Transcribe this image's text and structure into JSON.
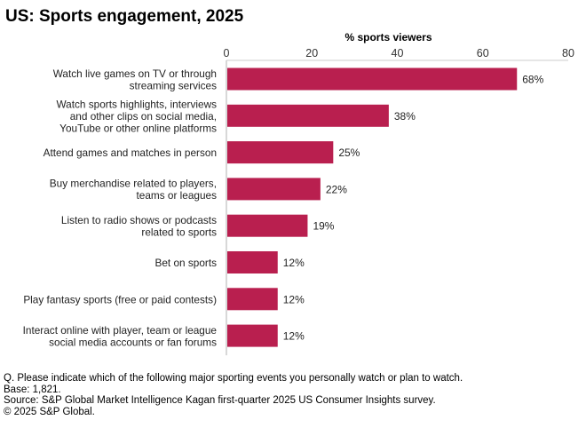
{
  "title": "US: Sports engagement, 2025",
  "chart_data": {
    "type": "bar",
    "orientation": "horizontal",
    "xlabel": "% sports viewers",
    "xlim": [
      0,
      80
    ],
    "xticks": [
      0,
      20,
      40,
      60,
      80
    ],
    "bar_color": "#b91f4f",
    "categories": [
      [
        "Watch live games on TV or through",
        "streaming services"
      ],
      [
        "Watch sports highlights, interviews",
        "and other clips on social media,",
        "YouTube or other online platforms"
      ],
      [
        "Attend games and matches in person"
      ],
      [
        "Buy merchandise related to players,",
        "teams or leagues"
      ],
      [
        "Listen to radio shows or podcasts",
        "related to sports"
      ],
      [
        "Bet on sports"
      ],
      [
        "Play fantasy sports (free or paid contests)"
      ],
      [
        "Interact online with player, team or league",
        "social media accounts or fan forums"
      ]
    ],
    "values": [
      68,
      38,
      25,
      22,
      19,
      12,
      12,
      12
    ],
    "value_labels": [
      "68%",
      "38%",
      "25%",
      "22%",
      "19%",
      "12%",
      "12%",
      "12%"
    ]
  },
  "footnotes": [
    "Q. Please indicate which of the following major sporting events you personally watch or plan to watch.",
    "Base: 1,821.",
    "Source: S&P Global Market Intelligence Kagan first-quarter 2025 US Consumer Insights survey.",
    "© 2025 S&P Global."
  ]
}
